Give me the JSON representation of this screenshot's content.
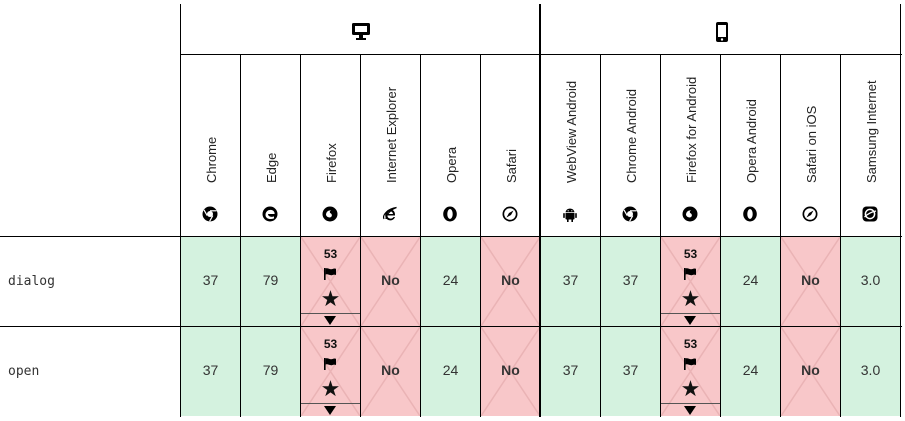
{
  "platforms": {
    "desktop_icon": "desktop-icon",
    "mobile_icon": "mobile-icon"
  },
  "browsers": [
    {
      "name": "Chrome",
      "icon": "chrome-icon"
    },
    {
      "name": "Edge",
      "icon": "edge-icon"
    },
    {
      "name": "Firefox",
      "icon": "firefox-icon"
    },
    {
      "name": "Internet Explorer",
      "icon": "internet-explorer-icon"
    },
    {
      "name": "Opera",
      "icon": "opera-icon"
    },
    {
      "name": "Safari",
      "icon": "safari-icon"
    },
    {
      "name": "WebView Android",
      "icon": "android-icon"
    },
    {
      "name": "Chrome Android",
      "icon": "chrome-icon"
    },
    {
      "name": "Firefox for Android",
      "icon": "firefox-icon"
    },
    {
      "name": "Opera Android",
      "icon": "opera-icon"
    },
    {
      "name": "Safari on iOS",
      "icon": "safari-icon"
    },
    {
      "name": "Samsung Internet",
      "icon": "samsung-internet-icon"
    }
  ],
  "rows": [
    {
      "feature": "dialog",
      "cells": [
        {
          "status": "yes",
          "value": "37"
        },
        {
          "status": "yes",
          "value": "79"
        },
        {
          "status": "partial",
          "value": "53"
        },
        {
          "status": "no",
          "value": "No"
        },
        {
          "status": "yes",
          "value": "24"
        },
        {
          "status": "no",
          "value": "No"
        },
        {
          "status": "yes",
          "value": "37"
        },
        {
          "status": "yes",
          "value": "37"
        },
        {
          "status": "partial",
          "value": "53"
        },
        {
          "status": "yes",
          "value": "24"
        },
        {
          "status": "no",
          "value": "No"
        },
        {
          "status": "yes",
          "value": "3.0"
        }
      ]
    },
    {
      "feature": "open",
      "cells": [
        {
          "status": "yes",
          "value": "37"
        },
        {
          "status": "yes",
          "value": "79"
        },
        {
          "status": "partial",
          "value": "53"
        },
        {
          "status": "no",
          "value": "No"
        },
        {
          "status": "yes",
          "value": "24"
        },
        {
          "status": "no",
          "value": "No"
        },
        {
          "status": "yes",
          "value": "37"
        },
        {
          "status": "yes",
          "value": "37"
        },
        {
          "status": "partial",
          "value": "53"
        },
        {
          "status": "yes",
          "value": "24"
        },
        {
          "status": "no",
          "value": "No"
        },
        {
          "status": "yes",
          "value": "3.0"
        }
      ]
    }
  ],
  "colors": {
    "supported": "#d4f2df",
    "unsupported": "#f8c7c9"
  }
}
